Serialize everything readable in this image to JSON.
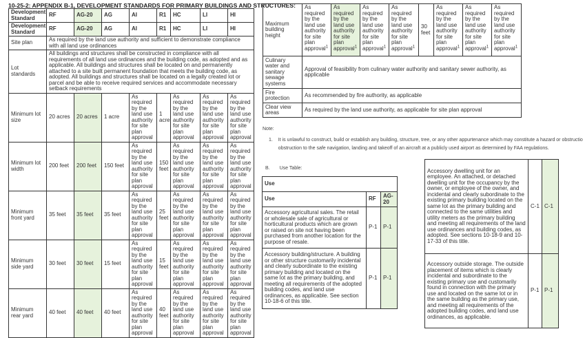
{
  "left_table": {
    "title": "10-25-2: APPENDIX B-1, DEVELOPMENT STANDARDS FOR PRIMARY BUILDINGS AND STRUCTURES:",
    "header_rows": [
      [
        "Development Standard",
        "RF",
        "AG-20",
        "AG",
        "AI",
        "R1",
        "HC",
        "LI",
        "HI"
      ],
      [
        "Development Standard",
        "RF",
        "AG-20",
        "AG",
        "AI",
        "R1",
        "HC",
        "LI",
        "HI"
      ]
    ],
    "span_rows": [
      {
        "label": "Site plan",
        "text": "As required by the land use authority and sufficient to demonstrate compliance with all land use ordinances"
      },
      {
        "label": "Lot standards",
        "text": "All buildings and structures shall be constructed in compliance with all requirements of all land use ordinances and the building code, as adopted and as applicable. All buildings and structures shall be located on and permanently attached to a site built permanent foundation that meets the building code, as adopted. All buildings and structures shall be located on a legally created lot or parcel and be able to receive required services and accommodate necessary setback requirements"
      }
    ],
    "rows": [
      {
        "label": "Minimum lot size",
        "values": [
          "20 acres",
          "20 acres",
          "1 acre",
          "As required by the land use authority for site plan approval",
          "1 acre",
          "As required by the land use authority for site plan approval",
          "As required by the land use authority for site plan approval",
          "As required by the land use authority for site plan approval"
        ]
      },
      {
        "label": "Minimum lot width",
        "values": [
          "200 feet",
          "200 feet",
          "150 feet",
          "As required by the land use authority for site plan approval",
          "150 feet",
          "As required by the land use authority for site plan approval",
          "As required by the land use authority for site plan approval",
          "As required by the land use authority for site plan approval"
        ]
      },
      {
        "label": "Minimum front yard",
        "values": [
          "35 feet",
          "35 feet",
          "35 feet",
          "As required by the land use authority for site plan approval",
          "25 feet",
          "As required by the land use authority for site plan approval",
          "As required by the land use authority for site plan approval",
          "As required by the land use authority for site plan approval"
        ]
      },
      {
        "label": "Minimum side yard",
        "values": [
          "30 feet",
          "30 feet",
          "15 feet",
          "As required by the land use authority for site plan approval",
          "15 feet",
          "As required by the land use authority for site plan approval",
          "As required by the land use authority for site plan approval",
          "As required by the land use authority for site plan approval"
        ]
      },
      {
        "label": "Minimum rear yard",
        "values": [
          "40 feet",
          "40 feet",
          "40 feet",
          "As required by the land use authority for site plan approval",
          "40 feet",
          "As required by the land use authority for site plan approval",
          "As required by the land use authority for site plan approval",
          "As required by the land use authority for site plan approval"
        ]
      }
    ]
  },
  "right_table": {
    "height_row": {
      "label": "Maximum building height",
      "values": [
        "As required by the land use authority for site plan approval",
        "As required by the land use authority for site plan approval",
        "As required by the land use authority for site plan approval",
        "As required by the land use authority for site plan approval",
        "30 feet",
        "As required by the land use authority for site plan approval",
        "As required by the land use authority for site plan approval",
        "As required by the land use authority for site plan approval"
      ],
      "footnotes": [
        "1",
        "1",
        "1",
        "1",
        "",
        "1",
        "1",
        "1"
      ]
    },
    "span_rows": [
      {
        "label": "Culinary water and sanitary sewage systems",
        "text": "Approval of feasibility from culinary water authority and sanitary sewer authority, as applicable"
      },
      {
        "label": "Fire protection",
        "text": "As recommended by fire authority, as applicable"
      },
      {
        "label": "Clear view areas",
        "text": "As required by the land use authority, as applicable for site plan approval"
      }
    ]
  },
  "note": {
    "heading": "Note:",
    "number": "1.",
    "text": "It is unlawful to construct, build or establish any building, structure, tree, or any other appurtenance which may constitute a hazard or obstructio obstruction to the safe navigation, landing and takeoff of an aircraft at a publicly used airport as determined by FAA regulations."
  },
  "use_table": {
    "section_label": "B.",
    "section_title": "Use Table:",
    "caption": "Use",
    "headers": [
      "Use",
      "RF",
      "AG-20"
    ],
    "rows_left": [
      {
        "use": "Accessory agricultural sales. The retail or wholesale sale of agricultural or horticultural products which are grown or raised on site not having been purchased from another location for the purpose of resale.",
        "rf": "P-1",
        "ag20": "P-1"
      },
      {
        "use": "Accessory building/structure. A building or other structure customarily incidental and clearly subordinate to the existing primary building and located on the same lot as the primary building, and meeting all requirements of the adopted building codes, and land use ordinances, as applicable. See section 10-18-6 of this title.",
        "rf": "P-1",
        "ag20": "P-1"
      }
    ],
    "rows_right": [
      {
        "use": "Accessory dwelling unit for an employee. An attached, or detached dwelling unit for the occupancy by the owner, or employee of the owner, and incidental and clearly subordinate to the existing primary building located on the same lot as the primary building and connected to the same utilities and utility meters as the primary building and meeting all requirements of the land use ordinances and building codes, as adopted. See sections 10-18-9 and 10-17-33 of this title.",
        "rf": "C-1",
        "ag20": "C-1"
      },
      {
        "use": "Accessory outside storage. The outside placement of items which is clearly incidental and subordinate to the existing primary use and customarily found in connection with the primary use and located on the same lot or in the same building as the primary use, and meeting all requirements of the adopted building codes, and land use ordinances, as applicable.",
        "rf": "P-1",
        "ag20": "P-1"
      }
    ]
  },
  "colors": {
    "highlight": "#e6f2dc",
    "border": "#333333"
  }
}
